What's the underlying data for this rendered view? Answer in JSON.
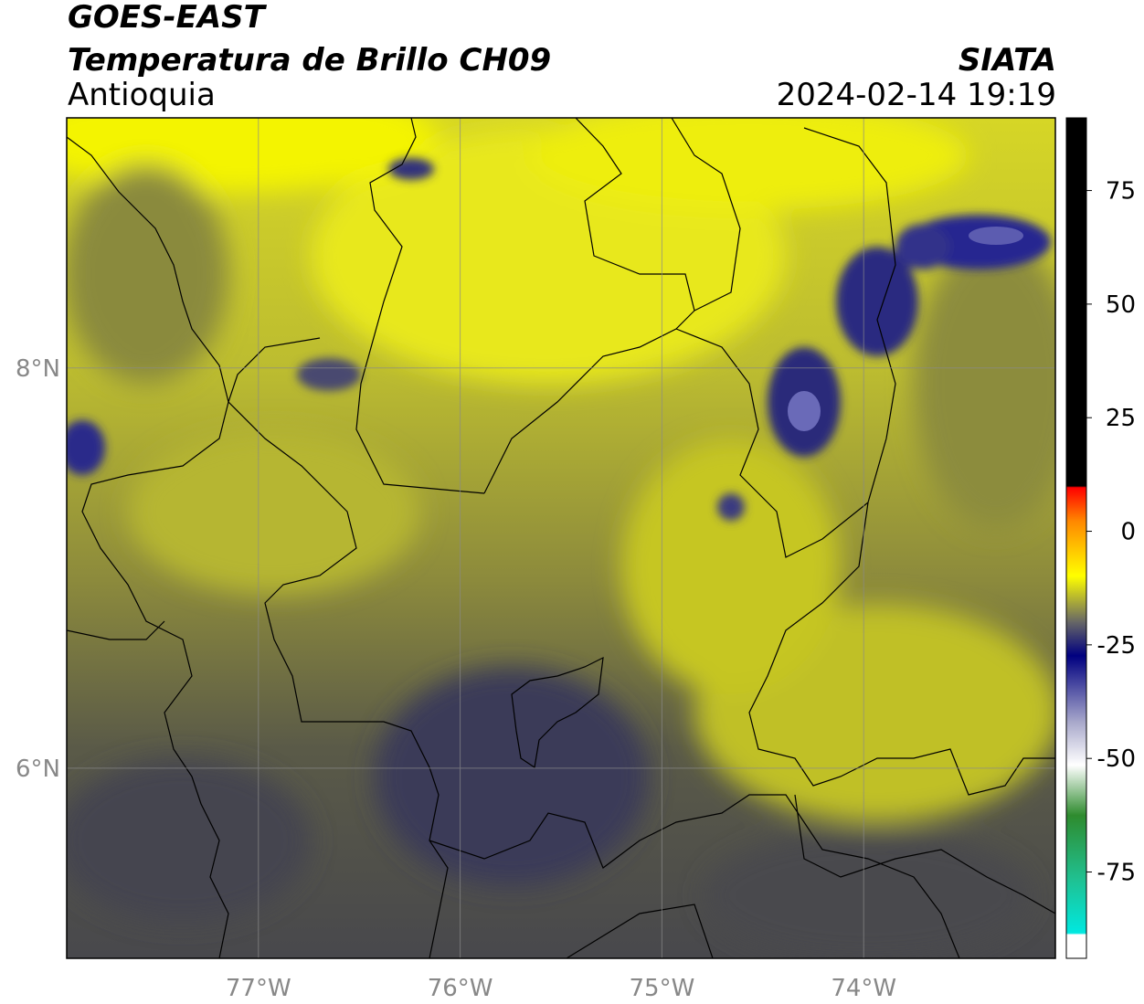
{
  "header": {
    "satellite": "GOES-EAST",
    "product": "Temperatura de Brillo CH09",
    "region": "Antioquia",
    "organization": "SIATA",
    "timestamp": "2024-02-14 19:19"
  },
  "map": {
    "lon_labels": [
      "77°W",
      "76°W",
      "75°W",
      "74°W"
    ],
    "lat_labels": [
      "8°N",
      "6°N"
    ],
    "lon_range": [
      -77.95,
      -73.05
    ],
    "lat_range": [
      5.05,
      9.25
    ],
    "colors": {
      "land_low": "#4a4a50",
      "land_mid": "#8a8a3a",
      "land_high": "#c8c81e",
      "bright_yellow": "#f4f400",
      "deep_blue": "#1a1a8c",
      "border": "#000000",
      "grid": "#9a9a9a"
    }
  },
  "colorbar": {
    "ticks": [
      "75",
      "50",
      "25",
      "0",
      "-25",
      "-50",
      "-75"
    ],
    "range": [
      -94,
      91
    ],
    "colors": {
      "black": "#000000",
      "red": "#ff0000",
      "orange": "#ff9900",
      "yellow": "#ffff00",
      "gray": "#555555",
      "navy": "#000080",
      "white": "#ffffff",
      "green": "#228b22",
      "cyan": "#00e5e5"
    }
  }
}
